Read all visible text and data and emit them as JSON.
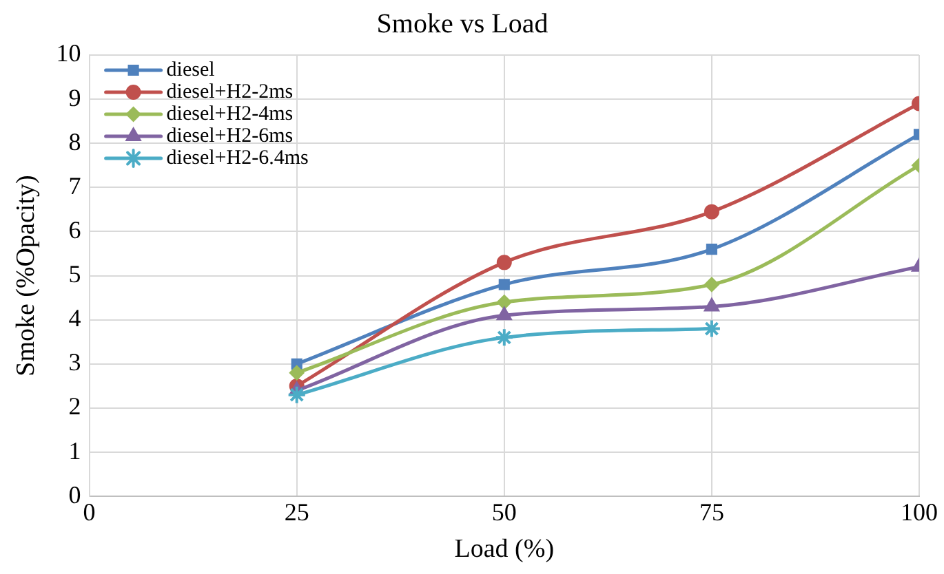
{
  "chart_data": {
    "type": "line",
    "title": "Smoke vs Load",
    "xlabel": "Load (%)",
    "ylabel": "Smoke (%Opacity)",
    "x": [
      25,
      50,
      75,
      100
    ],
    "series": [
      {
        "name": "diesel",
        "color": "#4f81bd",
        "marker": "square",
        "values": [
          3.0,
          4.8,
          5.6,
          8.2
        ]
      },
      {
        "name": "diesel+H2-2ms",
        "color": "#c0504d",
        "marker": "circle",
        "values": [
          2.5,
          5.3,
          6.45,
          8.9
        ]
      },
      {
        "name": "diesel+H2-4ms",
        "color": "#9bbb59",
        "marker": "diamond",
        "values": [
          2.8,
          4.4,
          4.8,
          7.5
        ]
      },
      {
        "name": "diesel+H2-6ms",
        "color": "#8064a2",
        "marker": "triangle",
        "values": [
          2.4,
          4.1,
          4.3,
          5.2
        ]
      },
      {
        "name": "diesel+H2-6.4ms",
        "color": "#4bacc6",
        "marker": "cross",
        "values": [
          2.3,
          3.6,
          3.8,
          null
        ]
      }
    ],
    "xlim": [
      0,
      100
    ],
    "xticks": [
      0,
      25,
      50,
      75,
      100
    ],
    "ylim": [
      0,
      10
    ],
    "yticks": [
      0,
      1,
      2,
      3,
      4,
      5,
      6,
      7,
      8,
      9,
      10
    ],
    "grid": true,
    "legend": "top left",
    "line_style": "solid"
  }
}
